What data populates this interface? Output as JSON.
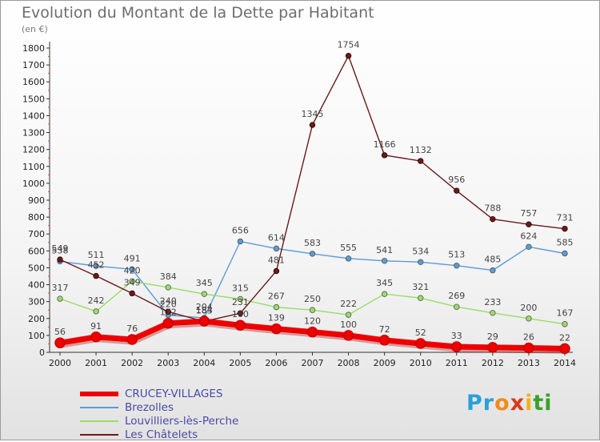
{
  "title": "Evolution du Montant de la Dette par Habitant",
  "unit": "(en €)",
  "logo": {
    "letters": [
      "P",
      "r",
      "o",
      "x",
      "i",
      "t",
      "i"
    ],
    "colors": [
      "#2aa0d8",
      "#2aa0d8",
      "#f08c1a",
      "#d83a1a",
      "#f0b41a",
      "#3aa02a",
      "#3aa02a"
    ]
  },
  "chart_data": {
    "type": "line",
    "x": [
      "2000",
      "2001",
      "2002",
      "2003",
      "2004",
      "2005",
      "2006",
      "2007",
      "2008",
      "2009",
      "2010",
      "2011",
      "2012",
      "2013",
      "2014"
    ],
    "ylim": [
      0,
      1800
    ],
    "yticks": [
      0,
      100,
      200,
      300,
      400,
      500,
      600,
      700,
      800,
      900,
      1000,
      1100,
      1200,
      1300,
      1400,
      1500,
      1600,
      1700,
      1800
    ],
    "grid": false,
    "legend_position": "bottom-left",
    "series": [
      {
        "name": "CRUCEY-VILLAGES",
        "color": "#ee0000",
        "values": [
          56,
          91,
          76,
          172,
          184,
          160,
          139,
          120,
          100,
          72,
          52,
          33,
          29,
          26,
          22
        ],
        "labels": [
          "56",
          "91",
          "76",
          "172",
          "184",
          "160",
          "139",
          "120",
          "100",
          "72",
          "52",
          "33",
          "29",
          "26",
          "22"
        ]
      },
      {
        "name": "Brezolles",
        "color": "#5b9bd5",
        "values": [
          538,
          511,
          491,
          220,
          204,
          656,
          614,
          583,
          555,
          541,
          534,
          513,
          485,
          624,
          585
        ],
        "labels": [
          "538",
          "511",
          "491",
          "220",
          "204",
          "656",
          "614",
          "583",
          "555",
          "541",
          "534",
          "513",
          "485",
          "624",
          "585"
        ]
      },
      {
        "name": "Louvilliers-lès-Perche",
        "color": "#99dd66",
        "values": [
          317,
          242,
          420,
          384,
          345,
          315,
          267,
          250,
          222,
          345,
          321,
          269,
          233,
          200,
          167
        ],
        "labels": [
          "317",
          "242",
          "420",
          "384",
          "345",
          "315",
          "267",
          "250",
          "222",
          "345",
          "321",
          "269",
          "233",
          "200",
          "167"
        ]
      },
      {
        "name": "Les Châtelets",
        "color": "#6b1a1a",
        "values": [
          549,
          452,
          349,
          240,
          183,
          231,
          481,
          1345,
          1754,
          1166,
          1132,
          956,
          788,
          757,
          731
        ],
        "labels": [
          "549",
          "452",
          "349",
          "240",
          "183",
          "231",
          "481",
          "1345",
          "1754",
          "1166",
          "1132",
          "956",
          "788",
          "757",
          "731"
        ]
      }
    ]
  }
}
